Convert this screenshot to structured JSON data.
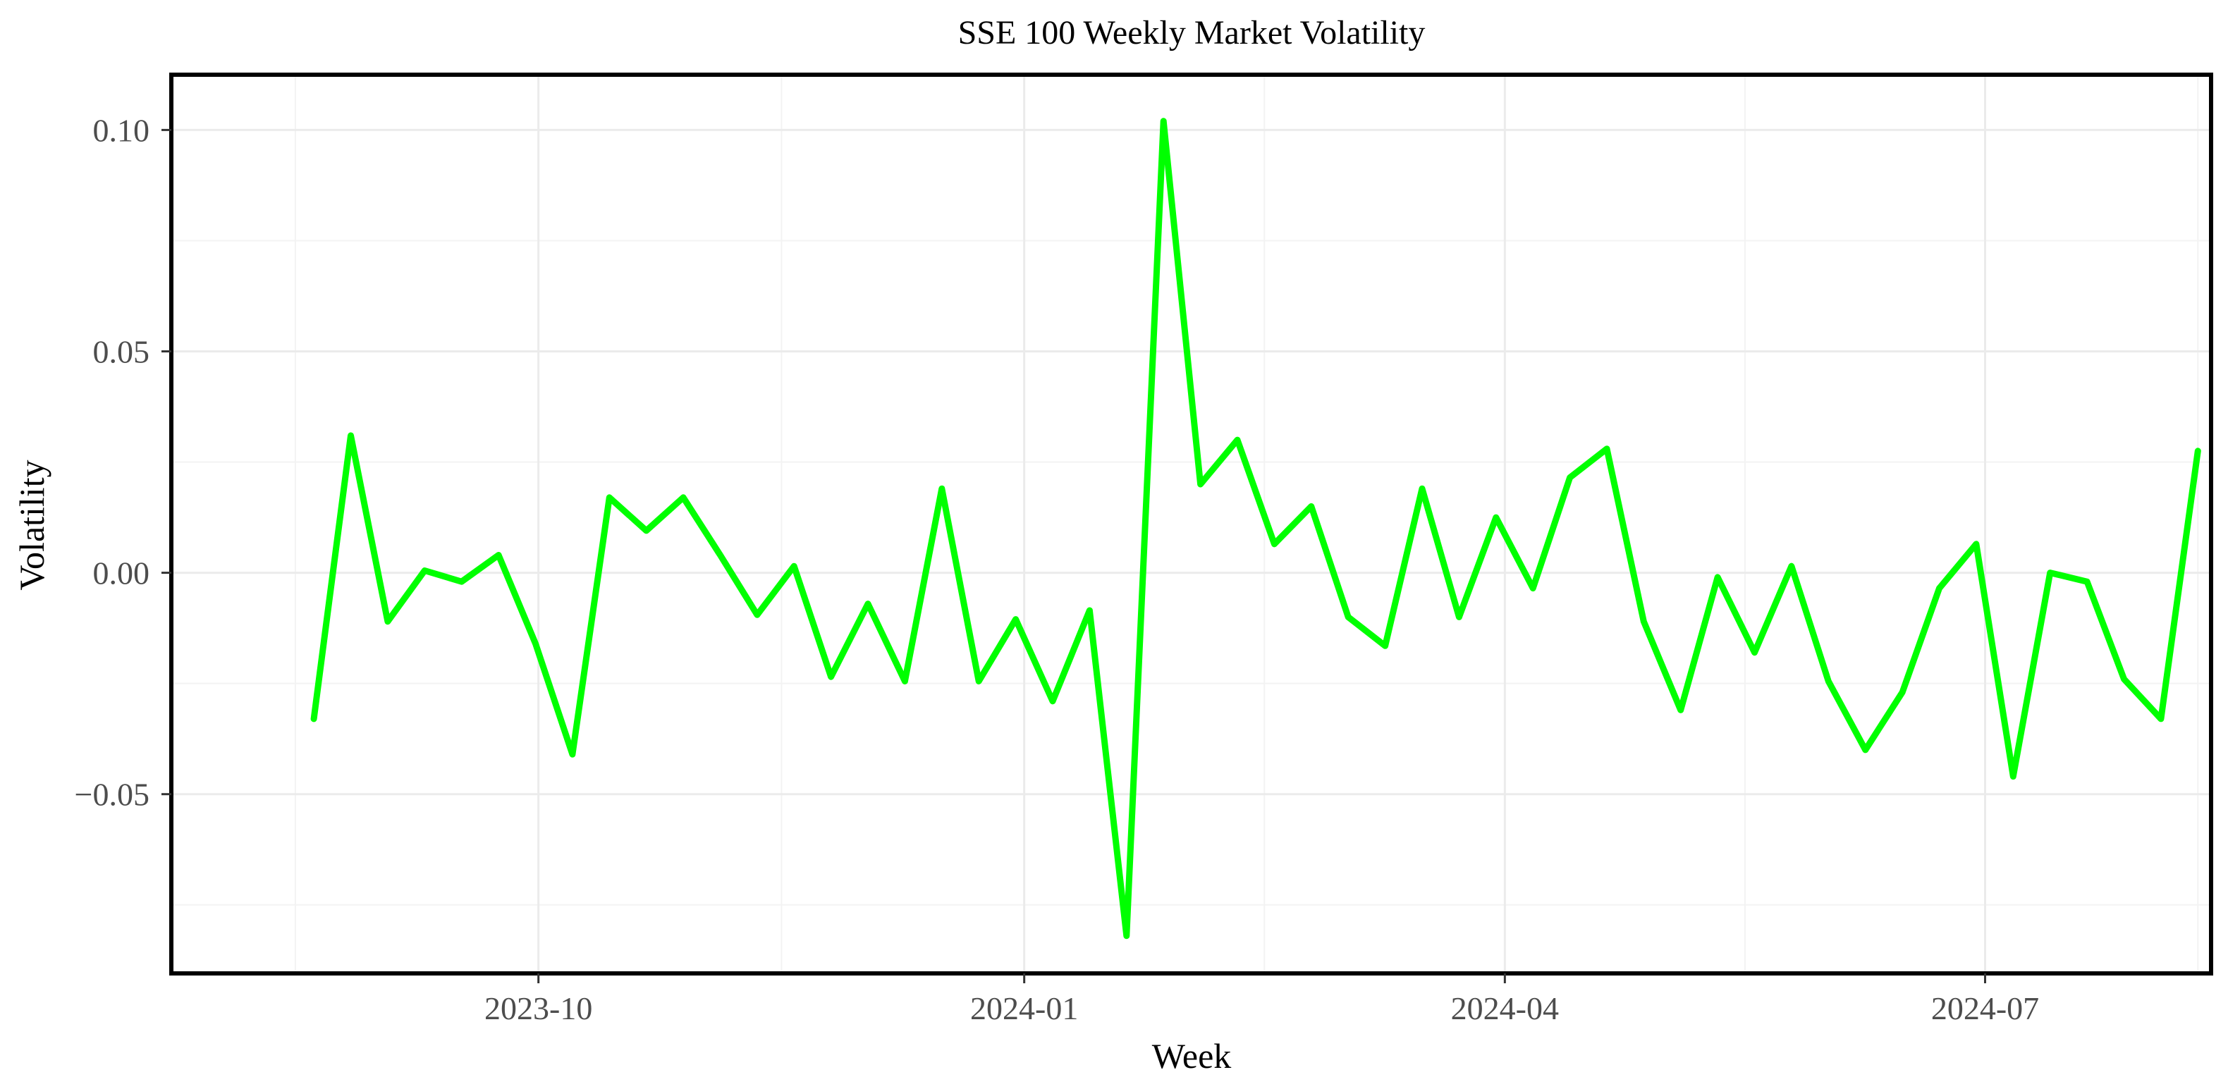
{
  "chart_data": {
    "type": "line",
    "title": "SSE 100 Weekly Market Volatility",
    "xlabel": "Week",
    "ylabel": "Volatility",
    "color": "#00ff00",
    "grid": true,
    "legend": "none",
    "ylim": [
      -0.09,
      0.112
    ],
    "yticks": [
      {
        "value": 0.1,
        "label": "0.10"
      },
      {
        "value": 0.05,
        "label": "0.05"
      },
      {
        "value": 0.0,
        "label": "0.00"
      },
      {
        "value": -0.05,
        "label": "−0.05"
      }
    ],
    "yminor": [
      0.075,
      0.025,
      -0.025,
      -0.075
    ],
    "xlim_weeks": [
      -3.8,
      51.3
    ],
    "xticks": [
      {
        "week": 6.08,
        "label": "2023-10"
      },
      {
        "week": 19.23,
        "label": "2024-01"
      },
      {
        "week": 32.24,
        "label": "2024-04"
      },
      {
        "week": 45.24,
        "label": "2024-07"
      }
    ],
    "xminor_weeks": [
      -0.5,
      12.66,
      25.73,
      38.74,
      51.0
    ],
    "first_week": "2023-08-21",
    "series": [
      {
        "name": "Volatility",
        "values": [
          -0.033,
          0.031,
          -0.011,
          0.0005,
          -0.002,
          0.004,
          -0.016,
          -0.041,
          0.017,
          0.0095,
          0.017,
          0.004,
          -0.0095,
          0.0015,
          -0.0235,
          -0.007,
          -0.0245,
          0.019,
          -0.0245,
          -0.0105,
          -0.029,
          -0.0085,
          -0.082,
          0.102,
          0.02,
          0.03,
          0.0065,
          0.015,
          -0.01,
          -0.0165,
          0.019,
          -0.01,
          0.0125,
          -0.0035,
          0.0215,
          0.028,
          -0.011,
          -0.031,
          -0.001,
          -0.018,
          0.0015,
          -0.0245,
          -0.04,
          -0.027,
          -0.0035,
          0.0065,
          -0.046,
          0.0,
          -0.002,
          -0.024,
          -0.033,
          0.0275
        ]
      }
    ]
  }
}
